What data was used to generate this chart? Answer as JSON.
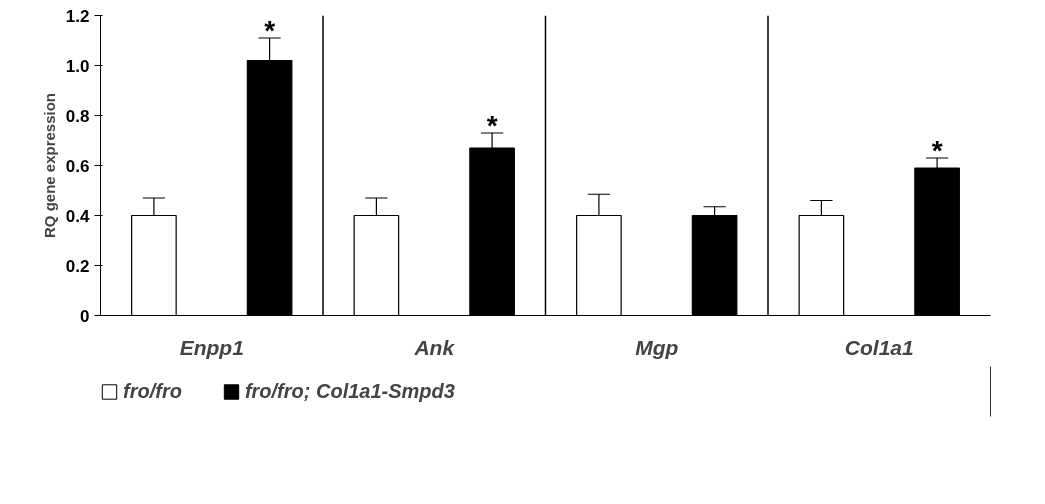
{
  "chart_data": {
    "type": "bar",
    "ylabel": "RQ gene expression",
    "categories": [
      "Enpp1",
      "Ank",
      "Mgp",
      "Col1a1"
    ],
    "series": [
      {
        "name": "fro/fro",
        "color": "#ffffff",
        "values": [
          0.4,
          0.4,
          0.4,
          0.4
        ],
        "errors": [
          [
            0.4,
            0.47
          ],
          [
            0.4,
            0.47
          ],
          [
            0.4,
            0.485
          ],
          [
            0.4,
            0.46
          ]
        ]
      },
      {
        "name": "fro/fro; Col1a1-Smpd3",
        "color": "#000000",
        "values": [
          1.02,
          0.67,
          0.4,
          0.59
        ],
        "errors": [
          [
            1.02,
            1.11
          ],
          [
            0.67,
            0.73
          ],
          [
            0.4,
            0.435
          ],
          [
            0.59,
            0.63
          ]
        ],
        "value_labels": [
          "*",
          "*",
          null,
          "*"
        ]
      }
    ],
    "ylim": [
      0,
      1.2
    ],
    "yticks": [
      0,
      {
        "value": 0.2,
        "label": "0.2"
      },
      {
        "value": 0.4,
        "label": "0.4"
      },
      {
        "value": 0.6,
        "label": "0.6"
      },
      {
        "value": 0.8,
        "label": "0.8"
      },
      {
        "value": 1.0,
        "label": "1.0"
      },
      {
        "value": 1.2,
        "label": "1.2"
      }
    ],
    "legend": "bottom",
    "grid": false
  }
}
